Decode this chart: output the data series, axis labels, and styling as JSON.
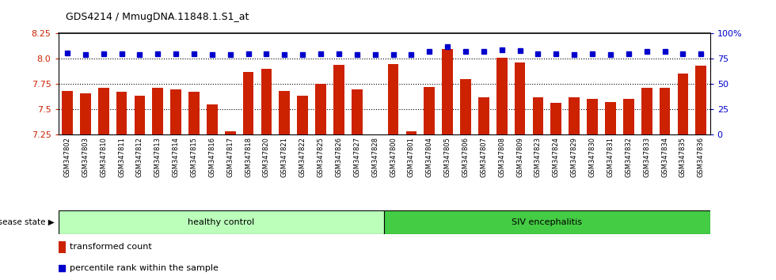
{
  "title": "GDS4214 / MmugDNA.11848.1.S1_at",
  "samples": [
    "GSM347802",
    "GSM347803",
    "GSM347810",
    "GSM347811",
    "GSM347812",
    "GSM347813",
    "GSM347814",
    "GSM347815",
    "GSM347816",
    "GSM347817",
    "GSM347818",
    "GSM347820",
    "GSM347821",
    "GSM347822",
    "GSM347825",
    "GSM347826",
    "GSM347827",
    "GSM347828",
    "GSM347800",
    "GSM347801",
    "GSM347804",
    "GSM347805",
    "GSM347806",
    "GSM347807",
    "GSM347808",
    "GSM347809",
    "GSM347823",
    "GSM347824",
    "GSM347829",
    "GSM347830",
    "GSM347831",
    "GSM347832",
    "GSM347833",
    "GSM347834",
    "GSM347835",
    "GSM347836"
  ],
  "bar_values": [
    7.68,
    7.66,
    7.71,
    7.67,
    7.63,
    7.71,
    7.7,
    7.67,
    7.55,
    7.28,
    7.87,
    7.9,
    7.68,
    7.63,
    7.75,
    7.94,
    7.7,
    7.25,
    7.95,
    7.28,
    7.72,
    8.1,
    7.8,
    7.62,
    8.01,
    7.96,
    7.62,
    7.56,
    7.62,
    7.6,
    7.57,
    7.6,
    7.71,
    7.71,
    7.85,
    7.93
  ],
  "percentile_values": [
    81,
    79,
    80,
    80,
    79,
    80,
    80,
    80,
    79,
    79,
    80,
    80,
    79,
    79,
    80,
    80,
    79,
    79,
    79,
    79,
    82,
    87,
    82,
    82,
    84,
    83,
    80,
    80,
    79,
    80,
    79,
    80,
    82,
    82,
    80,
    80
  ],
  "ylim_left": [
    7.25,
    8.25
  ],
  "ylim_right": [
    0,
    100
  ],
  "yticks_left": [
    7.25,
    7.5,
    7.75,
    8.0,
    8.25
  ],
  "yticks_right": [
    0,
    25,
    50,
    75,
    100
  ],
  "bar_color": "#cc2200",
  "percentile_color": "#0000cc",
  "healthy_color": "#bbffbb",
  "siv_color": "#44cc44",
  "healthy_label": "healthy control",
  "siv_label": "SIV encephalitis",
  "n_healthy": 18,
  "disease_state_label": "disease state",
  "legend_bar_label": "transformed count",
  "legend_pct_label": "percentile rank within the sample",
  "bg_color": "#ffffff"
}
